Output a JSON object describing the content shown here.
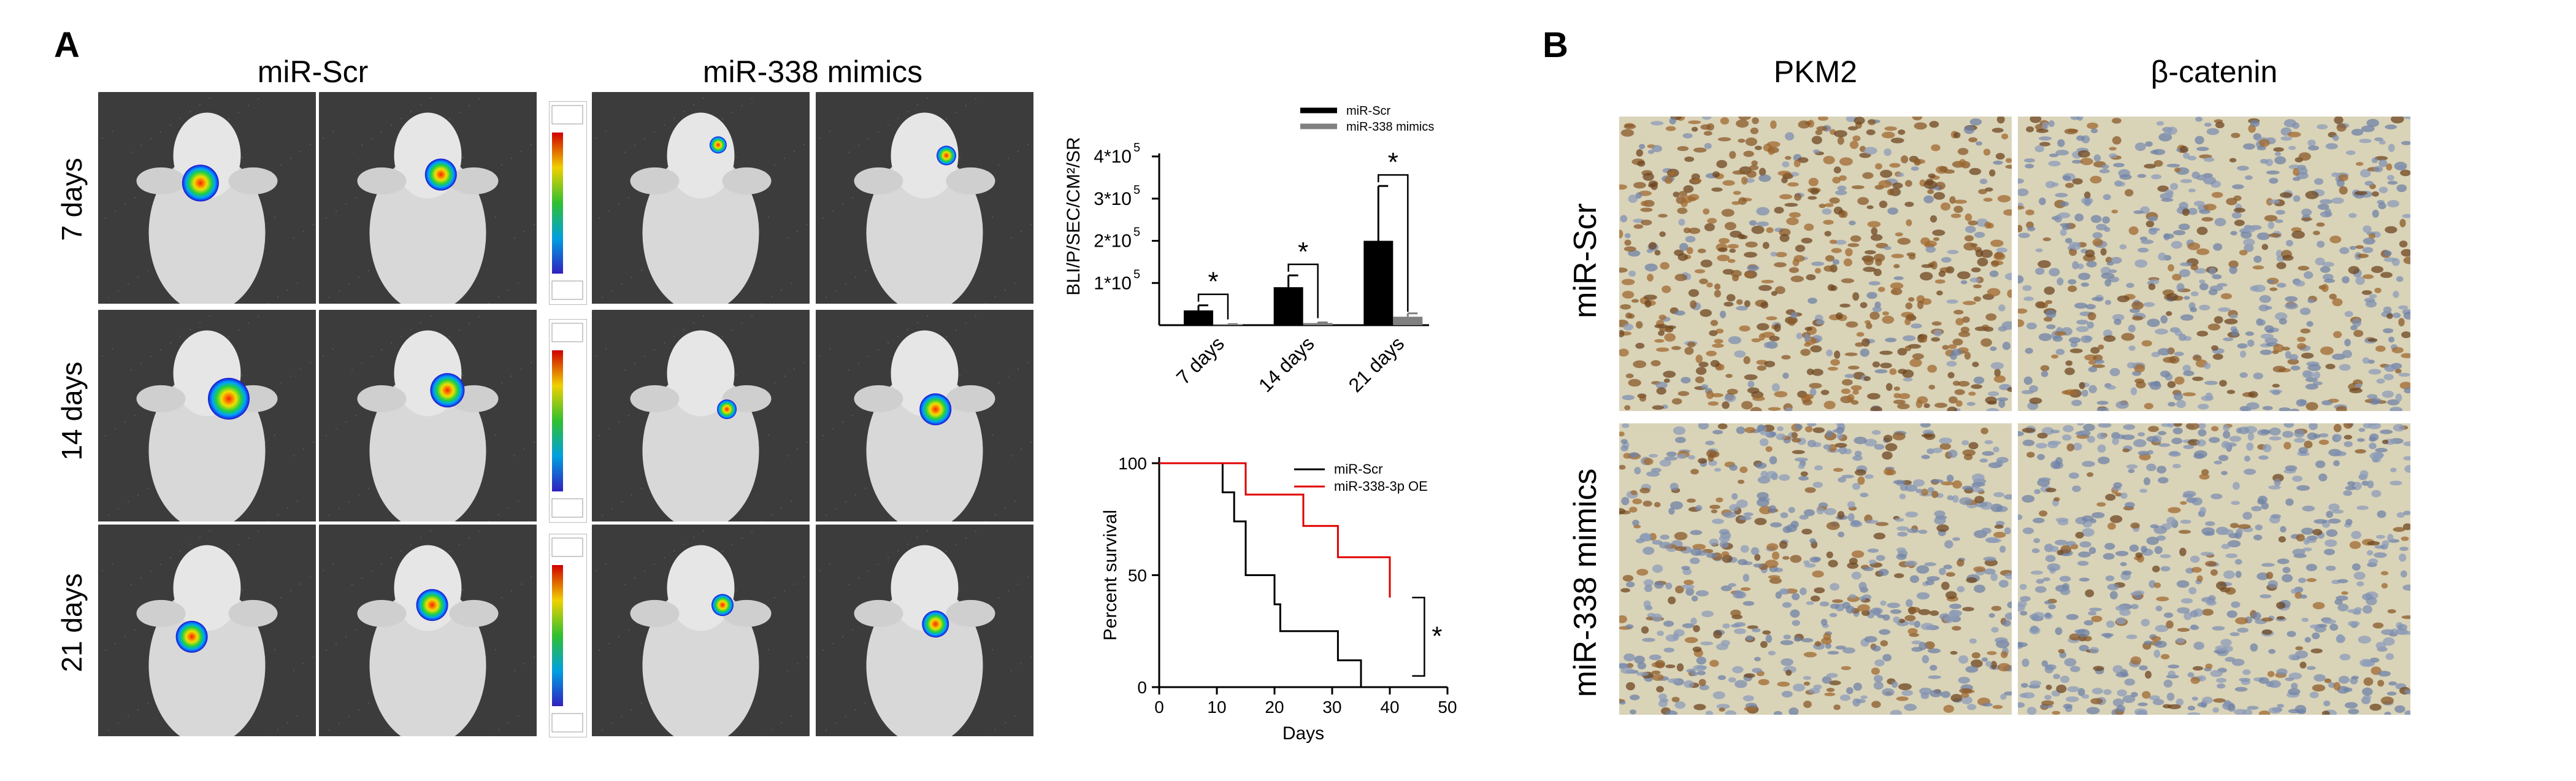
{
  "panel_a": {
    "letter": "A",
    "col_headers": [
      "miR-Scr",
      "miR-338 mimics"
    ],
    "row_labels": [
      "7 days",
      "14 days",
      "21 days"
    ]
  },
  "panel_b": {
    "letter": "B",
    "col_headers": [
      "PKM2",
      "β-catenin"
    ],
    "row_labels": [
      "miR-Scr",
      "miR-338 mimics"
    ]
  },
  "chart_data": [
    {
      "type": "bar",
      "title": "",
      "xlabel": "",
      "ylabel": "BLI/P/SEC/CM²/SR",
      "categories": [
        "7 days",
        "14 days",
        "21 days"
      ],
      "ytick_labels": [
        "1*10",
        "2*10",
        "3*10",
        "4*10"
      ],
      "ytick_exponent": "5",
      "ylim": [
        0,
        400000
      ],
      "series": [
        {
          "name": "miR-Scr",
          "color": "#000000",
          "values": [
            35000,
            90000,
            200000
          ],
          "errors": [
            12000,
            28000,
            130000
          ]
        },
        {
          "name": "miR-338 mimics",
          "color": "#808080",
          "values": [
            2000,
            5000,
            20000
          ],
          "errors": [
            500,
            1500,
            8000
          ]
        }
      ],
      "significance": [
        "*",
        "*",
        "*"
      ],
      "legend_position": "top-right"
    },
    {
      "type": "line",
      "title": "",
      "xlabel": "Days",
      "ylabel": "Percent survival",
      "xlim": [
        0,
        50
      ],
      "ylim": [
        0,
        100
      ],
      "xticks": [
        0,
        10,
        20,
        30,
        40,
        50
      ],
      "yticks": [
        0,
        50,
        100
      ],
      "series": [
        {
          "name": "miR-Scr",
          "color": "#000000",
          "steps": [
            [
              0,
              100
            ],
            [
              11,
              100
            ],
            [
              11,
              87
            ],
            [
              13,
              87
            ],
            [
              13,
              74
            ],
            [
              15,
              74
            ],
            [
              15,
              50
            ],
            [
              20,
              50
            ],
            [
              20,
              37
            ],
            [
              21,
              37
            ],
            [
              21,
              25
            ],
            [
              31,
              25
            ],
            [
              31,
              12
            ],
            [
              35,
              12
            ],
            [
              35,
              0
            ]
          ]
        },
        {
          "name": "miR-338-3p OE",
          "color": "#e00000",
          "steps": [
            [
              0,
              100
            ],
            [
              15,
              100
            ],
            [
              15,
              86
            ],
            [
              25,
              86
            ],
            [
              25,
              72
            ],
            [
              31,
              72
            ],
            [
              31,
              58
            ],
            [
              40,
              58
            ],
            [
              40,
              40
            ]
          ]
        }
      ],
      "significance": "*",
      "legend_position": "top-right"
    }
  ]
}
